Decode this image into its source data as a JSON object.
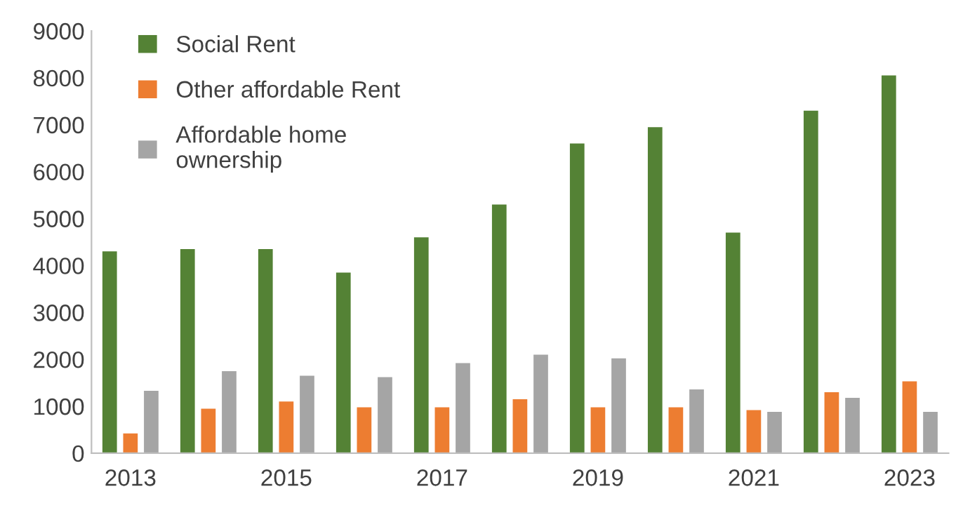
{
  "chart_data": {
    "type": "bar",
    "categories": [
      "2013",
      null,
      "2015",
      null,
      "2017",
      null,
      "2019",
      null,
      "2021",
      null,
      "2023"
    ],
    "series": [
      {
        "name": "Social Rent",
        "color": "#548235",
        "values": [
          4300,
          4350,
          4350,
          3850,
          4600,
          5300,
          6600,
          6950,
          4700,
          7300,
          8050
        ]
      },
      {
        "name": "Other affordable Rent",
        "color": "#ed7d31",
        "values": [
          420,
          950,
          1100,
          980,
          980,
          1150,
          980,
          980,
          920,
          1300,
          1530
        ]
      },
      {
        "name": "Affordable home\nownership",
        "color": "#a5a5a5",
        "values": [
          1330,
          1750,
          1650,
          1620,
          1920,
          2100,
          2020,
          1360,
          880,
          1180,
          880
        ]
      }
    ],
    "ylim": [
      0,
      9000
    ],
    "yticks": [
      0,
      1000,
      2000,
      3000,
      4000,
      5000,
      6000,
      7000,
      8000,
      9000
    ],
    "grid": false,
    "legend": "top left"
  }
}
